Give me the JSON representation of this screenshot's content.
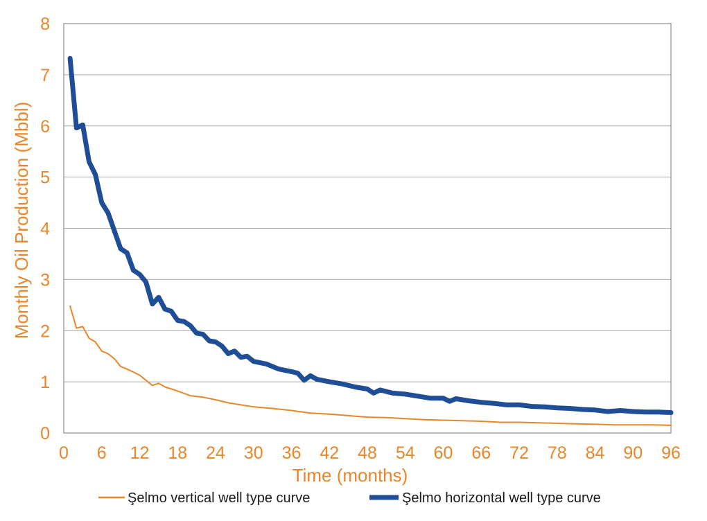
{
  "chart_data": {
    "type": "line",
    "title": "",
    "xlabel": "Time (months)",
    "ylabel": "Monthly Oil Production (Mbbl)",
    "xlim": [
      0,
      96
    ],
    "ylim": [
      0,
      8
    ],
    "xticks": [
      0,
      6,
      12,
      18,
      24,
      30,
      36,
      42,
      48,
      54,
      60,
      66,
      72,
      78,
      84,
      90,
      96
    ],
    "yticks": [
      0,
      1,
      2,
      3,
      4,
      5,
      6,
      7,
      8
    ],
    "grid": "horizontal",
    "legend_position": "bottom",
    "series": [
      {
        "name": "Şelmo vertical well type curve",
        "color": "#e8862a",
        "style": "thin",
        "x": [
          1,
          2,
          3,
          4,
          5,
          6,
          7,
          8,
          9,
          10,
          12,
          14,
          15,
          16,
          18,
          20,
          22,
          24,
          26,
          28,
          30,
          33,
          36,
          39,
          42,
          45,
          48,
          51,
          54,
          57,
          60,
          63,
          66,
          69,
          72,
          75,
          78,
          81,
          84,
          87,
          90,
          93,
          96
        ],
        "y": [
          2.48,
          2.05,
          2.08,
          1.85,
          1.78,
          1.6,
          1.55,
          1.45,
          1.3,
          1.25,
          1.13,
          0.93,
          0.97,
          0.9,
          0.82,
          0.73,
          0.7,
          0.65,
          0.59,
          0.55,
          0.51,
          0.48,
          0.44,
          0.39,
          0.37,
          0.34,
          0.31,
          0.3,
          0.28,
          0.26,
          0.25,
          0.24,
          0.23,
          0.21,
          0.21,
          0.2,
          0.19,
          0.18,
          0.17,
          0.16,
          0.16,
          0.16,
          0.15
        ]
      },
      {
        "name": "Şelmo horizontal well type curve",
        "color": "#1f4e96",
        "style": "thick",
        "x": [
          1,
          2,
          3,
          4,
          5,
          6,
          7,
          8,
          9,
          10,
          11,
          12,
          13,
          14,
          15,
          16,
          17,
          18,
          19,
          20,
          21,
          22,
          23,
          24,
          25,
          26,
          27,
          28,
          29,
          30,
          32,
          34,
          36,
          37,
          38,
          39,
          40,
          42,
          44,
          46,
          48,
          49,
          50,
          52,
          54,
          56,
          58,
          60,
          61,
          62,
          64,
          66,
          68,
          70,
          72,
          74,
          76,
          78,
          80,
          82,
          84,
          86,
          88,
          90,
          92,
          94,
          96
        ],
        "y": [
          7.32,
          5.96,
          6.02,
          5.3,
          5.05,
          4.5,
          4.3,
          3.95,
          3.6,
          3.52,
          3.18,
          3.1,
          2.95,
          2.52,
          2.65,
          2.42,
          2.38,
          2.2,
          2.18,
          2.1,
          1.95,
          1.93,
          1.8,
          1.78,
          1.7,
          1.55,
          1.6,
          1.48,
          1.5,
          1.4,
          1.35,
          1.25,
          1.2,
          1.17,
          1.03,
          1.12,
          1.05,
          1.0,
          0.96,
          0.9,
          0.86,
          0.78,
          0.84,
          0.78,
          0.76,
          0.72,
          0.68,
          0.68,
          0.62,
          0.67,
          0.63,
          0.6,
          0.58,
          0.55,
          0.55,
          0.52,
          0.51,
          0.49,
          0.48,
          0.46,
          0.45,
          0.42,
          0.44,
          0.42,
          0.41,
          0.41,
          0.4
        ]
      }
    ]
  }
}
